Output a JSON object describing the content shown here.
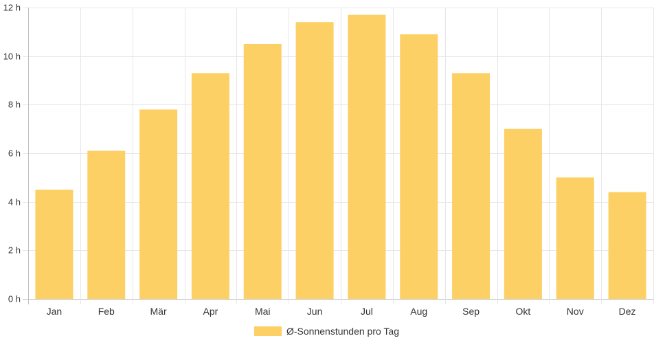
{
  "chart_data": {
    "type": "bar",
    "categories": [
      "Jan",
      "Feb",
      "Mär",
      "Apr",
      "Mai",
      "Jun",
      "Jul",
      "Aug",
      "Sep",
      "Okt",
      "Nov",
      "Dez"
    ],
    "series": [
      {
        "name": "Ø-Sonnenstunden pro Tag",
        "values": [
          4.5,
          6.1,
          7.8,
          9.3,
          10.5,
          11.4,
          11.7,
          10.9,
          9.3,
          7.0,
          5.0,
          4.4
        ],
        "color": "#fdd066"
      }
    ],
    "ylim": [
      0,
      12
    ],
    "yticks": [
      "0 h",
      "2 h",
      "4 h",
      "6 h",
      "8 h",
      "10 h",
      "12 h"
    ],
    "ytick_values": [
      0,
      2,
      4,
      6,
      8,
      10,
      12
    ],
    "grid": true,
    "legend_position": "bottom",
    "gridline_color": "#e6e6e6",
    "axis_color": "#bfbfbf"
  }
}
